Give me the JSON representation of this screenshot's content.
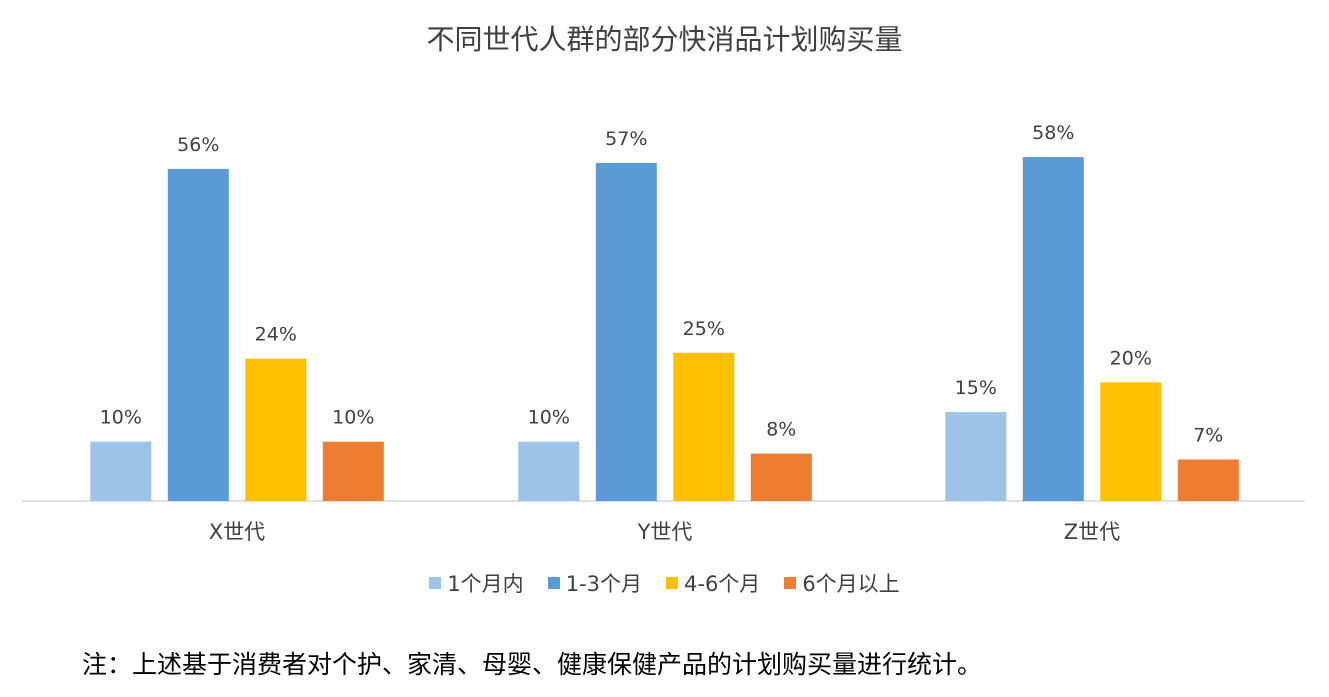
{
  "chart_data": {
    "type": "bar",
    "title": "不同世代人群的部分快消品计划购买量",
    "categories": [
      "X世代",
      "Y世代",
      "Z世代"
    ],
    "series": [
      {
        "name": "1个月内",
        "color": "#9DC3E6",
        "values": [
          10,
          10,
          15
        ],
        "labels": [
          "10%",
          "10%",
          "15%"
        ]
      },
      {
        "name": "1-3个月",
        "color": "#5B9BD5",
        "values": [
          56,
          57,
          58
        ],
        "labels": [
          "56%",
          "57%",
          "58%"
        ]
      },
      {
        "name": "4-6个月",
        "color": "#FFC000",
        "values": [
          24,
          25,
          20
        ],
        "labels": [
          "24%",
          "25%",
          "20%"
        ]
      },
      {
        "name": "6个月以上",
        "color": "#ED7D31",
        "values": [
          10,
          8,
          7
        ],
        "labels": [
          "10%",
          "8%",
          "7%"
        ]
      }
    ],
    "xlabel": "",
    "ylabel": "",
    "ylim": [
      0,
      60
    ],
    "grid": false,
    "legend_position": "bottom"
  },
  "footnote": "注：上述基于消费者对个护、家清、母婴、健康保健产品的计划购买量进行统计。"
}
